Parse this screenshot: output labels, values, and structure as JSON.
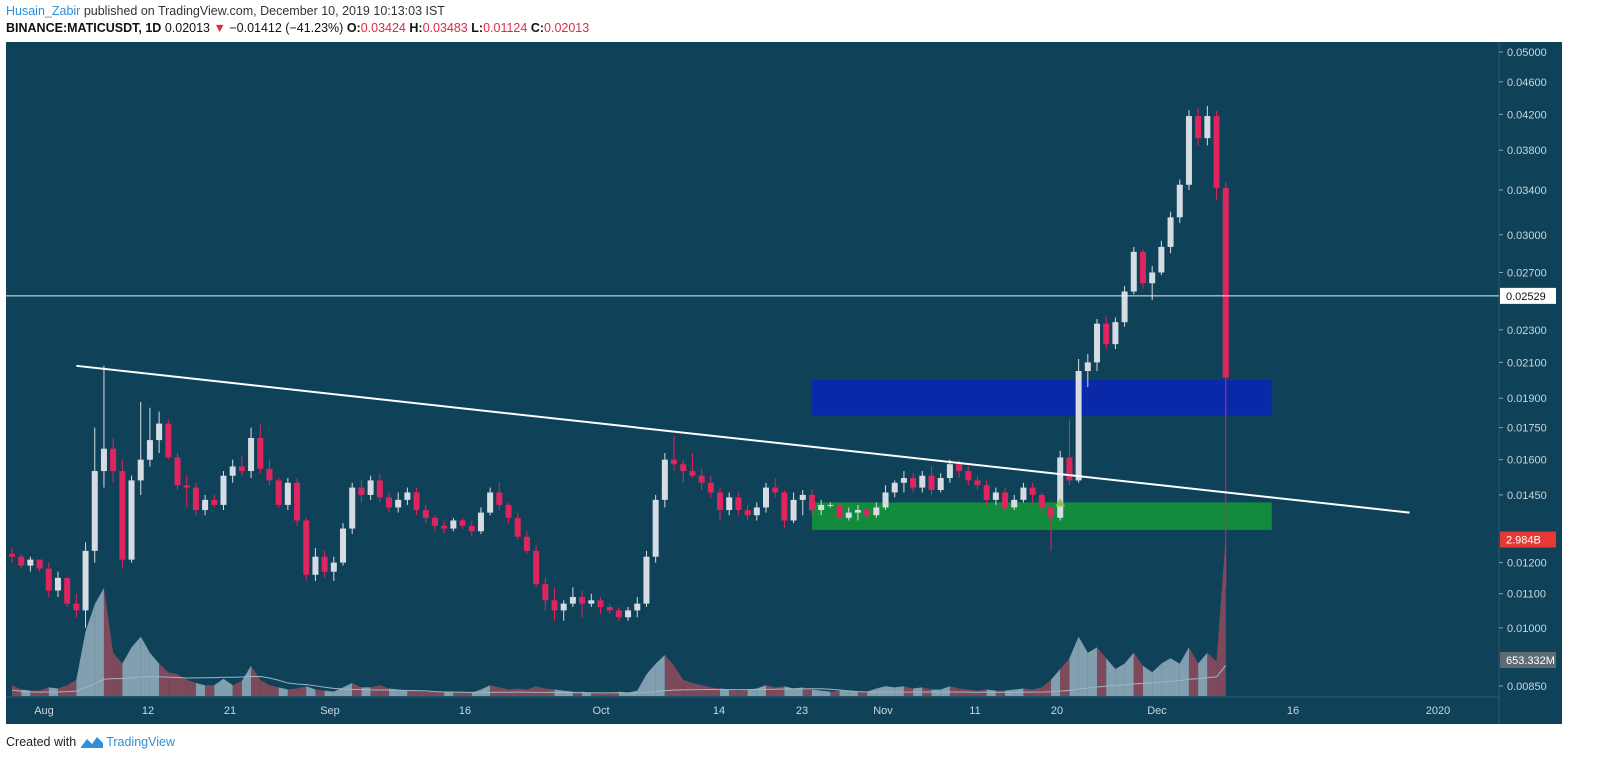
{
  "header": {
    "author": "Husain_Zabir",
    "published_text": "published on TradingView.com, December 10, 2019 10:13:03 IST",
    "symbol": "BINANCE:MATICUSDT, 1D",
    "last": "0.02013",
    "change": "−0.01412 (−41.23%)",
    "open_label": "O:",
    "open": "0.03424",
    "high_label": "H:",
    "high": "0.03483",
    "low_label": "L:",
    "low": "0.01124",
    "close_label": "C:",
    "close": "0.02013"
  },
  "footer": {
    "created_with": "Created with",
    "brand": "TradingView"
  },
  "colors": {
    "background": "#0f4258",
    "up_candle": "#d6dce4",
    "down_candle": "#e0245e",
    "resistance_zone": "#0a27b0",
    "support_zone": "#12913a",
    "trendline": "#ffffff",
    "volume_up": "#8eaab8",
    "volume_down": "#8a4a5c"
  },
  "chart_data": {
    "type": "candlestick",
    "scale": "log",
    "price_ticks": [
      "0.05000",
      "0.04600",
      "0.04200",
      "0.03800",
      "0.03400",
      "0.03000",
      "0.02700",
      "0.02300",
      "0.02100",
      "0.01900",
      "0.01750",
      "0.01600",
      "0.01450",
      "0.01200",
      "0.01100",
      "0.01000",
      "0.00850"
    ],
    "date_labels": [
      "Aug",
      "12",
      "21",
      "Sep",
      "16",
      "Oct",
      "14",
      "23",
      "Nov",
      "11",
      "20",
      "Dec",
      "16",
      "2020"
    ],
    "horizontal_line": {
      "price": 0.02529,
      "label": "0.02529"
    },
    "volume_label": "2.984B",
    "volume_ma_label": "653.332M",
    "trendline": {
      "from": [
        "2019-08-08",
        0.0208
      ],
      "to": [
        "2019-12-31",
        0.0138
      ]
    },
    "zones": [
      {
        "name": "resistance",
        "from": "2019-10-27",
        "to": "2019-12-16",
        "low": 0.0181,
        "high": 0.02
      },
      {
        "name": "support",
        "from": "2019-10-27",
        "to": "2019-12-16",
        "low": 0.01315,
        "high": 0.0142
      }
    ],
    "marker": {
      "date": "2019-11-23",
      "shape": "triangle-up"
    },
    "candles": [
      [
        "2019-08-01",
        0.0123,
        0.0125,
        0.012,
        0.0122,
        0.1
      ],
      [
        "2019-08-02",
        0.0122,
        0.0123,
        0.0118,
        0.0119,
        0.06
      ],
      [
        "2019-08-03",
        0.0119,
        0.0122,
        0.0117,
        0.0121,
        0.05
      ],
      [
        "2019-08-04",
        0.0121,
        0.0121,
        0.0117,
        0.0118,
        0.05
      ],
      [
        "2019-08-05",
        0.0118,
        0.012,
        0.0109,
        0.0111,
        0.08
      ],
      [
        "2019-08-06",
        0.0111,
        0.0117,
        0.0109,
        0.0115,
        0.07
      ],
      [
        "2019-08-07",
        0.0115,
        0.0115,
        0.0106,
        0.0107,
        0.1
      ],
      [
        "2019-08-08",
        0.0107,
        0.011,
        0.0103,
        0.0105,
        0.15
      ],
      [
        "2019-08-09",
        0.0105,
        0.0127,
        0.01,
        0.0124,
        0.6
      ],
      [
        "2019-08-10",
        0.0124,
        0.0175,
        0.012,
        0.0155,
        0.85
      ],
      [
        "2019-08-11",
        0.0155,
        0.0208,
        0.0148,
        0.0165,
        1.0
      ],
      [
        "2019-08-12",
        0.0165,
        0.017,
        0.015,
        0.0155,
        0.4
      ],
      [
        "2019-08-13",
        0.0155,
        0.016,
        0.0118,
        0.0121,
        0.3
      ],
      [
        "2019-08-14",
        0.0121,
        0.0153,
        0.012,
        0.0151,
        0.45
      ],
      [
        "2019-08-15",
        0.0151,
        0.0188,
        0.0145,
        0.016,
        0.55
      ],
      [
        "2019-08-16",
        0.016,
        0.0185,
        0.0157,
        0.0169,
        0.4
      ],
      [
        "2019-08-17",
        0.0169,
        0.0183,
        0.0163,
        0.0177,
        0.3
      ],
      [
        "2019-08-18",
        0.0177,
        0.0179,
        0.016,
        0.0161,
        0.22
      ],
      [
        "2019-08-19",
        0.0161,
        0.0163,
        0.0147,
        0.0149,
        0.2
      ],
      [
        "2019-08-20",
        0.0149,
        0.0153,
        0.014,
        0.0148,
        0.15
      ],
      [
        "2019-08-21",
        0.0148,
        0.015,
        0.0137,
        0.0139,
        0.12
      ],
      [
        "2019-08-22",
        0.0139,
        0.0145,
        0.0137,
        0.0143,
        0.1
      ],
      [
        "2019-08-23",
        0.0143,
        0.0145,
        0.014,
        0.0141,
        0.1
      ],
      [
        "2019-08-24",
        0.0141,
        0.0155,
        0.0139,
        0.0153,
        0.16
      ],
      [
        "2019-08-25",
        0.0153,
        0.016,
        0.015,
        0.0157,
        0.1
      ],
      [
        "2019-08-26",
        0.0157,
        0.0162,
        0.0153,
        0.0155,
        0.14
      ],
      [
        "2019-08-27",
        0.0155,
        0.0175,
        0.0152,
        0.017,
        0.28
      ],
      [
        "2019-08-28",
        0.017,
        0.0177,
        0.0154,
        0.0156,
        0.15
      ],
      [
        "2019-08-29",
        0.0156,
        0.016,
        0.0149,
        0.0151,
        0.1
      ],
      [
        "2019-08-30",
        0.0151,
        0.0152,
        0.014,
        0.0141,
        0.08
      ],
      [
        "2019-08-31",
        0.0141,
        0.0152,
        0.0139,
        0.015,
        0.06
      ],
      [
        "2019-09-01",
        0.015,
        0.0152,
        0.0133,
        0.0135,
        0.07
      ],
      [
        "2019-09-02",
        0.0135,
        0.0136,
        0.0114,
        0.0116,
        0.09
      ],
      [
        "2019-09-03",
        0.0116,
        0.0125,
        0.0114,
        0.0122,
        0.06
      ],
      [
        "2019-09-04",
        0.0122,
        0.0124,
        0.0115,
        0.0117,
        0.05
      ],
      [
        "2019-09-05",
        0.0117,
        0.0122,
        0.0114,
        0.012,
        0.04
      ],
      [
        "2019-09-06",
        0.012,
        0.0134,
        0.0119,
        0.0132,
        0.08
      ],
      [
        "2019-09-07",
        0.0132,
        0.015,
        0.013,
        0.0148,
        0.12
      ],
      [
        "2019-09-08",
        0.0148,
        0.0151,
        0.0142,
        0.0145,
        0.08
      ],
      [
        "2019-09-09",
        0.0145,
        0.0153,
        0.0143,
        0.0151,
        0.08
      ],
      [
        "2019-09-10",
        0.0151,
        0.0154,
        0.0142,
        0.0144,
        0.1
      ],
      [
        "2019-09-11",
        0.0144,
        0.0146,
        0.0138,
        0.014,
        0.07
      ],
      [
        "2019-09-12",
        0.014,
        0.0146,
        0.0138,
        0.0143,
        0.06
      ],
      [
        "2019-09-13",
        0.0143,
        0.0148,
        0.0141,
        0.0146,
        0.05
      ],
      [
        "2019-09-14",
        0.0146,
        0.0148,
        0.0137,
        0.0139,
        0.05
      ],
      [
        "2019-09-15",
        0.0139,
        0.0141,
        0.0134,
        0.0136,
        0.04
      ],
      [
        "2019-09-16",
        0.0136,
        0.0137,
        0.0131,
        0.0133,
        0.04
      ],
      [
        "2019-09-17",
        0.0133,
        0.0135,
        0.013,
        0.0132,
        0.04
      ],
      [
        "2019-09-18",
        0.0132,
        0.0136,
        0.0131,
        0.0135,
        0.04
      ],
      [
        "2019-09-19",
        0.0135,
        0.0136,
        0.0132,
        0.0133,
        0.04
      ],
      [
        "2019-09-20",
        0.0133,
        0.0135,
        0.0129,
        0.0131,
        0.03
      ],
      [
        "2019-09-21",
        0.0131,
        0.014,
        0.013,
        0.0138,
        0.06
      ],
      [
        "2019-09-22",
        0.0138,
        0.0148,
        0.0137,
        0.0146,
        0.1
      ],
      [
        "2019-09-23",
        0.0146,
        0.015,
        0.0139,
        0.0141,
        0.08
      ],
      [
        "2019-09-24",
        0.0141,
        0.0142,
        0.0134,
        0.0136,
        0.06
      ],
      [
        "2019-09-25",
        0.0136,
        0.0138,
        0.0128,
        0.0129,
        0.07
      ],
      [
        "2019-09-26",
        0.0129,
        0.0131,
        0.0123,
        0.0124,
        0.06
      ],
      [
        "2019-09-27",
        0.0124,
        0.0126,
        0.0112,
        0.0113,
        0.09
      ],
      [
        "2019-09-28",
        0.0113,
        0.0115,
        0.0105,
        0.0108,
        0.07
      ],
      [
        "2019-09-29",
        0.0108,
        0.0112,
        0.0102,
        0.0105,
        0.06
      ],
      [
        "2019-09-30",
        0.0105,
        0.0108,
        0.0102,
        0.0107,
        0.05
      ],
      [
        "2019-10-01",
        0.0107,
        0.0112,
        0.0106,
        0.0109,
        0.04
      ],
      [
        "2019-10-02",
        0.0109,
        0.0111,
        0.0103,
        0.0107,
        0.04
      ],
      [
        "2019-10-03",
        0.0107,
        0.011,
        0.0106,
        0.0108,
        0.03
      ],
      [
        "2019-10-04",
        0.0108,
        0.0109,
        0.0104,
        0.0106,
        0.03
      ],
      [
        "2019-10-05",
        0.0106,
        0.0107,
        0.0104,
        0.0105,
        0.03
      ],
      [
        "2019-10-06",
        0.0105,
        0.0106,
        0.0102,
        0.0103,
        0.04
      ],
      [
        "2019-10-07",
        0.0103,
        0.0106,
        0.0102,
        0.0105,
        0.03
      ],
      [
        "2019-10-08",
        0.0105,
        0.0109,
        0.0103,
        0.0107,
        0.05
      ],
      [
        "2019-10-09",
        0.0107,
        0.0124,
        0.0106,
        0.0122,
        0.2
      ],
      [
        "2019-10-10",
        0.0122,
        0.0145,
        0.012,
        0.0143,
        0.3
      ],
      [
        "2019-10-11",
        0.0143,
        0.0163,
        0.014,
        0.016,
        0.38
      ],
      [
        "2019-10-12",
        0.016,
        0.0171,
        0.0155,
        0.0158,
        0.28
      ],
      [
        "2019-10-13",
        0.0158,
        0.016,
        0.015,
        0.0155,
        0.15
      ],
      [
        "2019-10-14",
        0.0155,
        0.0163,
        0.0152,
        0.0153,
        0.12
      ],
      [
        "2019-10-15",
        0.0153,
        0.0156,
        0.0147,
        0.015,
        0.1
      ],
      [
        "2019-10-16",
        0.015,
        0.0153,
        0.0144,
        0.0146,
        0.08
      ],
      [
        "2019-10-17",
        0.0146,
        0.0148,
        0.0135,
        0.0139,
        0.07
      ],
      [
        "2019-10-18",
        0.0139,
        0.0146,
        0.0137,
        0.0144,
        0.06
      ],
      [
        "2019-10-19",
        0.0144,
        0.0146,
        0.0137,
        0.0139,
        0.05
      ],
      [
        "2019-10-20",
        0.0139,
        0.0141,
        0.0135,
        0.0137,
        0.06
      ],
      [
        "2019-10-21",
        0.0137,
        0.0142,
        0.0135,
        0.014,
        0.07
      ],
      [
        "2019-10-22",
        0.014,
        0.015,
        0.0138,
        0.0148,
        0.1
      ],
      [
        "2019-10-23",
        0.0148,
        0.0152,
        0.0144,
        0.0146,
        0.08
      ],
      [
        "2019-10-24",
        0.0146,
        0.0147,
        0.0132,
        0.0135,
        0.09
      ],
      [
        "2019-10-25",
        0.0135,
        0.0146,
        0.0134,
        0.0143,
        0.07
      ],
      [
        "2019-10-26",
        0.0143,
        0.0147,
        0.0137,
        0.0145,
        0.08
      ],
      [
        "2019-10-27",
        0.0145,
        0.0147,
        0.0137,
        0.0139,
        0.06
      ],
      [
        "2019-10-28",
        0.0139,
        0.0143,
        0.0137,
        0.0141,
        0.05
      ],
      [
        "2019-10-29",
        0.0141,
        0.0142,
        0.014,
        0.0141,
        0.04
      ],
      [
        "2019-10-30",
        0.0141,
        0.0142,
        0.0135,
        0.0136,
        0.05
      ],
      [
        "2019-10-31",
        0.0136,
        0.014,
        0.0135,
        0.0138,
        0.05
      ],
      [
        "2019-11-01",
        0.0138,
        0.0141,
        0.0135,
        0.0139,
        0.04
      ],
      [
        "2019-11-02",
        0.0139,
        0.014,
        0.0135,
        0.0137,
        0.04
      ],
      [
        "2019-11-03",
        0.0137,
        0.0142,
        0.0136,
        0.014,
        0.07
      ],
      [
        "2019-11-04",
        0.014,
        0.0149,
        0.0139,
        0.0146,
        0.09
      ],
      [
        "2019-11-05",
        0.0146,
        0.0151,
        0.0144,
        0.015,
        0.08
      ],
      [
        "2019-11-06",
        0.015,
        0.0155,
        0.0146,
        0.0152,
        0.09
      ],
      [
        "2019-11-07",
        0.0152,
        0.0154,
        0.0146,
        0.0148,
        0.07
      ],
      [
        "2019-11-08",
        0.0148,
        0.0155,
        0.0146,
        0.0153,
        0.08
      ],
      [
        "2019-11-09",
        0.0153,
        0.0157,
        0.0145,
        0.0147,
        0.06
      ],
      [
        "2019-11-10",
        0.0147,
        0.0154,
        0.0146,
        0.0152,
        0.06
      ],
      [
        "2019-11-11",
        0.0152,
        0.016,
        0.015,
        0.0158,
        0.09
      ],
      [
        "2019-11-12",
        0.0158,
        0.016,
        0.0152,
        0.0155,
        0.07
      ],
      [
        "2019-11-13",
        0.0155,
        0.0157,
        0.0149,
        0.0151,
        0.06
      ],
      [
        "2019-11-14",
        0.0151,
        0.0153,
        0.0147,
        0.0149,
        0.05
      ],
      [
        "2019-11-15",
        0.0149,
        0.0151,
        0.0141,
        0.0143,
        0.06
      ],
      [
        "2019-11-16",
        0.0143,
        0.0148,
        0.0141,
        0.0146,
        0.05
      ],
      [
        "2019-11-17",
        0.0146,
        0.0148,
        0.0138,
        0.014,
        0.05
      ],
      [
        "2019-11-18",
        0.014,
        0.0145,
        0.0139,
        0.0143,
        0.06
      ],
      [
        "2019-11-19",
        0.0143,
        0.015,
        0.0142,
        0.0148,
        0.07
      ],
      [
        "2019-11-20",
        0.0148,
        0.015,
        0.0142,
        0.0145,
        0.06
      ],
      [
        "2019-11-21",
        0.0145,
        0.0146,
        0.0138,
        0.014,
        0.08
      ],
      [
        "2019-11-22",
        0.014,
        0.0141,
        0.0124,
        0.0136,
        0.15
      ],
      [
        "2019-11-23",
        0.0136,
        0.0164,
        0.0135,
        0.0161,
        0.25
      ],
      [
        "2019-11-24",
        0.0161,
        0.0179,
        0.0149,
        0.0151,
        0.35
      ],
      [
        "2019-11-25",
        0.0151,
        0.0212,
        0.015,
        0.0205,
        0.55
      ],
      [
        "2019-11-26",
        0.0205,
        0.0215,
        0.0196,
        0.021,
        0.4
      ],
      [
        "2019-11-27",
        0.021,
        0.0237,
        0.0205,
        0.0234,
        0.45
      ],
      [
        "2019-11-28",
        0.0234,
        0.0239,
        0.0218,
        0.0221,
        0.35
      ],
      [
        "2019-11-29",
        0.0221,
        0.0238,
        0.0218,
        0.0235,
        0.25
      ],
      [
        "2019-11-30",
        0.0235,
        0.026,
        0.0232,
        0.0256,
        0.3
      ],
      [
        "2019-12-01",
        0.0256,
        0.029,
        0.0254,
        0.0286,
        0.4
      ],
      [
        "2019-12-02",
        0.0286,
        0.0288,
        0.0258,
        0.0262,
        0.28
      ],
      [
        "2019-12-03",
        0.0262,
        0.0275,
        0.025,
        0.027,
        0.22
      ],
      [
        "2019-12-04",
        0.027,
        0.0295,
        0.0268,
        0.029,
        0.3
      ],
      [
        "2019-12-05",
        0.029,
        0.032,
        0.0285,
        0.0315,
        0.35
      ],
      [
        "2019-12-06",
        0.0315,
        0.035,
        0.031,
        0.0345,
        0.3
      ],
      [
        "2019-12-07",
        0.0345,
        0.0425,
        0.034,
        0.0418,
        0.45
      ],
      [
        "2019-12-08",
        0.0418,
        0.0428,
        0.0385,
        0.0393,
        0.3
      ],
      [
        "2019-12-09",
        0.0393,
        0.043,
        0.0385,
        0.0418,
        0.4
      ],
      [
        "2019-12-10",
        0.0418,
        0.0424,
        0.0331,
        0.0342,
        0.32
      ],
      [
        "2019-12-11",
        0.0342,
        0.0348,
        0.01124,
        0.02013,
        3.9
      ]
    ]
  }
}
